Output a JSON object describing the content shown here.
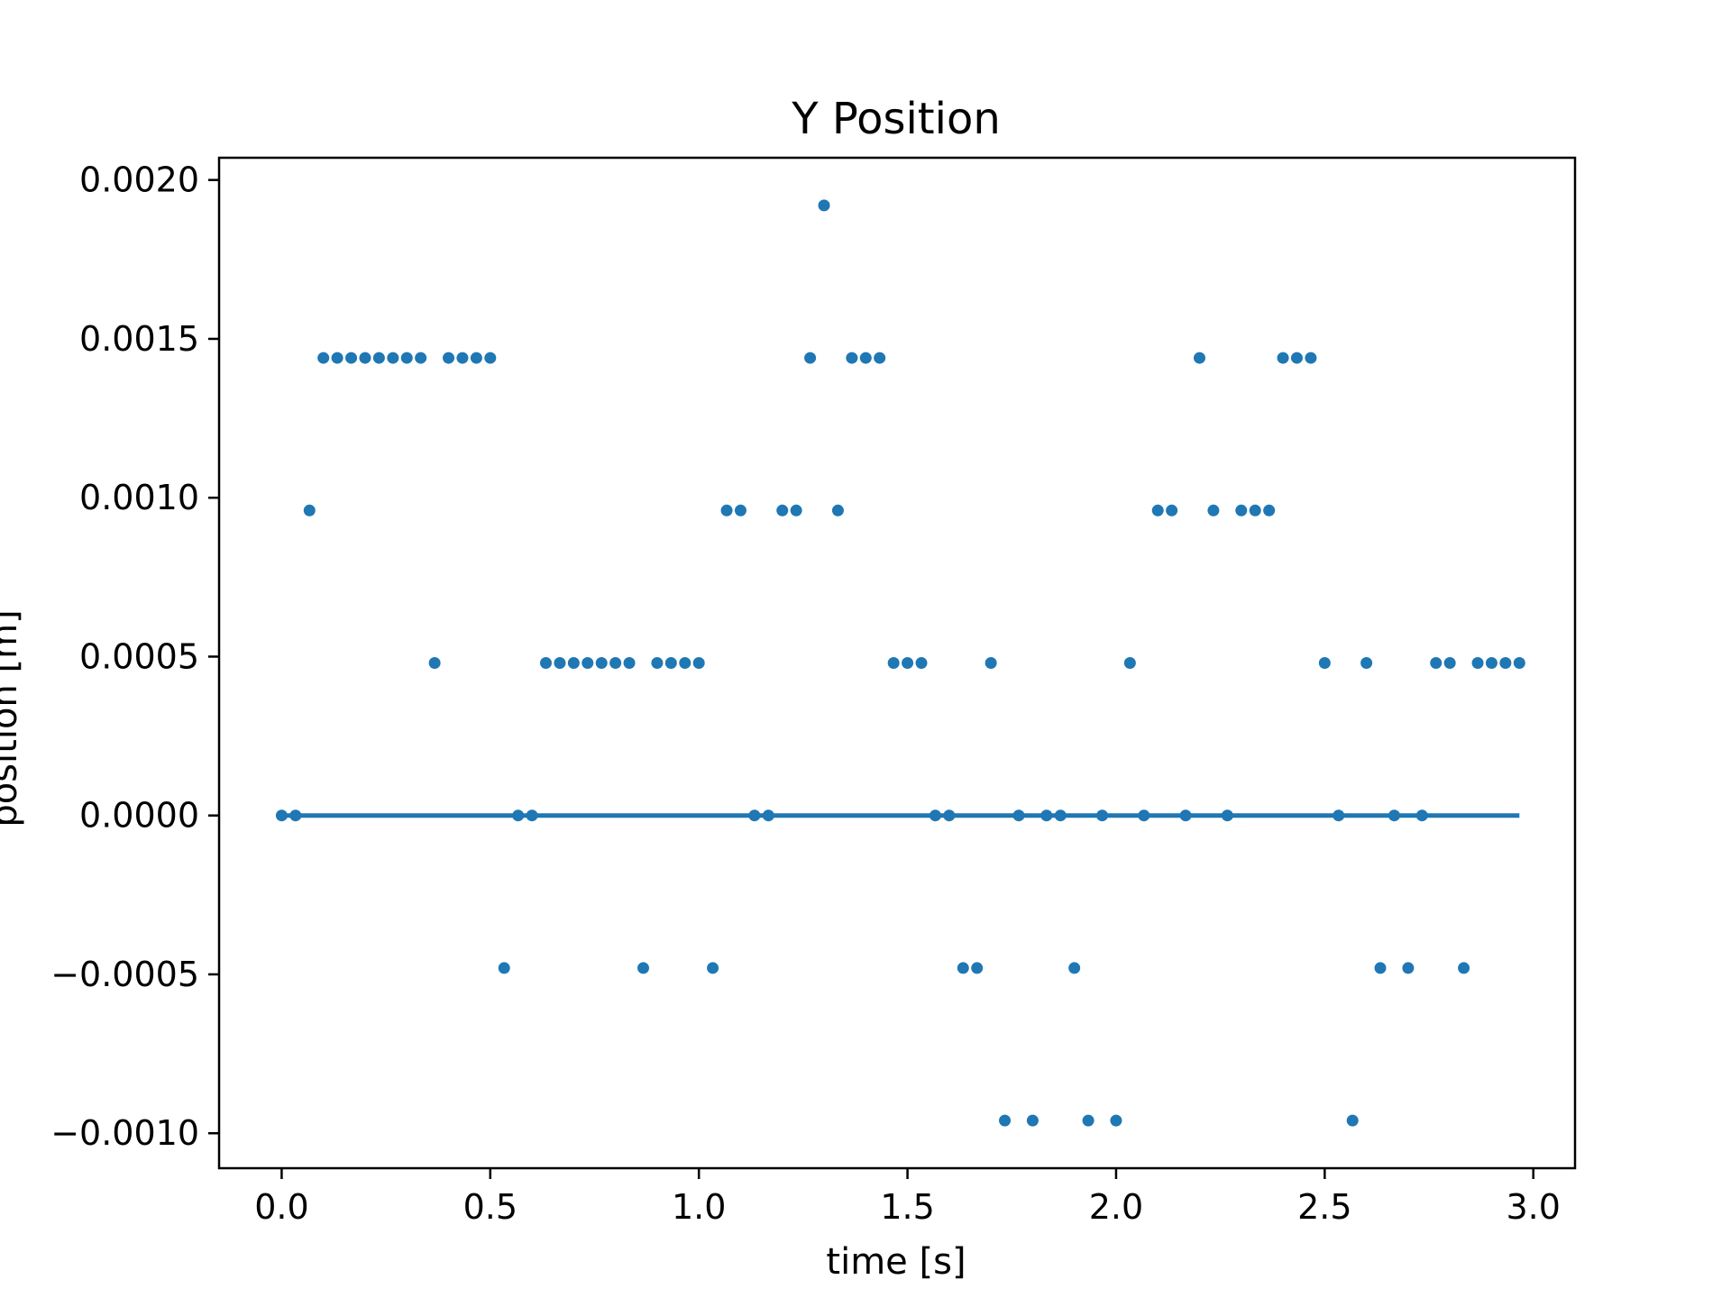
{
  "chart_data": {
    "type": "scatter",
    "title": "Y Position",
    "xlabel": "time [s]",
    "ylabel": "position [m]",
    "xlim": [
      -0.15,
      3.1
    ],
    "ylim": [
      -0.00111,
      0.00207
    ],
    "xticks": [
      0.0,
      0.5,
      1.0,
      1.5,
      2.0,
      2.5,
      3.0
    ],
    "xtick_labels": [
      "0.0",
      "0.5",
      "1.0",
      "1.5",
      "2.0",
      "2.5",
      "3.0"
    ],
    "yticks": [
      -0.001,
      -0.0005,
      0.0,
      0.0005,
      0.001,
      0.0015,
      0.002
    ],
    "ytick_labels": [
      "−0.0010",
      "−0.0005",
      "0.0000",
      "0.0005",
      "0.0010",
      "0.0015",
      "0.0020"
    ],
    "grid": false,
    "color": "#1f77b4",
    "series": [
      {
        "kind": "scatter",
        "x": [
          0.0,
          0.0333,
          0.0667,
          0.1,
          0.1333,
          0.1667,
          0.2,
          0.2333,
          0.2667,
          0.3,
          0.3333,
          0.3667,
          0.4,
          0.4333,
          0.4667,
          0.5,
          0.5333,
          0.5667,
          0.6,
          0.6333,
          0.6667,
          0.7,
          0.7333,
          0.7667,
          0.8,
          0.8333,
          0.8667,
          0.9,
          0.9333,
          0.9667,
          1.0,
          1.0333,
          1.0667,
          1.1,
          1.1333,
          1.1667,
          1.2,
          1.2333,
          1.2667,
          1.3,
          1.3333,
          1.3667,
          1.4,
          1.4333,
          1.4667,
          1.5,
          1.5333,
          1.5667,
          1.6,
          1.6333,
          1.6667,
          1.7,
          1.7333,
          1.7667,
          1.8,
          1.8333,
          1.8667,
          1.9,
          1.9333,
          1.9667,
          2.0,
          2.0333,
          2.0667,
          2.1,
          2.1333,
          2.1667,
          2.2,
          2.2333,
          2.2667,
          2.3,
          2.3333,
          2.3667,
          2.4,
          2.4333,
          2.4667,
          2.5,
          2.5333,
          2.5667,
          2.6,
          2.6333,
          2.6667,
          2.7,
          2.7333,
          2.7667,
          2.8,
          2.8333,
          2.8667,
          2.9,
          2.9333,
          2.9667
        ],
        "y": [
          0.0,
          0.0,
          0.00096,
          0.00144,
          0.00144,
          0.00144,
          0.00144,
          0.00144,
          0.00144,
          0.00144,
          0.00144,
          0.00048,
          0.00144,
          0.00144,
          0.00144,
          0.00144,
          -0.00048,
          0.0,
          0.0,
          0.00048,
          0.00048,
          0.00048,
          0.00048,
          0.00048,
          0.00048,
          0.00048,
          -0.00048,
          0.00048,
          0.00048,
          0.00048,
          0.00048,
          -0.00048,
          0.00096,
          0.00096,
          0.0,
          0.0,
          0.00096,
          0.00096,
          0.00144,
          0.00192,
          0.00096,
          0.00144,
          0.00144,
          0.00144,
          0.00048,
          0.00048,
          0.00048,
          0.0,
          0.0,
          -0.00048,
          -0.00048,
          0.00048,
          -0.00096,
          0.0,
          -0.00096,
          0.0,
          0.0,
          -0.00048,
          -0.00096,
          0.0,
          -0.00096,
          0.00048,
          0.0,
          0.00096,
          0.00096,
          0.0,
          0.00144,
          0.00096,
          0.0,
          0.00096,
          0.00096,
          0.00096,
          0.00144,
          0.00144,
          0.00144,
          0.00048,
          0.0,
          -0.00096,
          0.00048,
          -0.00048,
          0.0,
          -0.00048,
          0.0,
          0.00048,
          0.00048,
          -0.00048,
          0.00048,
          0.00048,
          0.00048,
          0.00048
        ]
      },
      {
        "kind": "line",
        "x": [
          0.0,
          2.9667
        ],
        "y": [
          0.0,
          0.0
        ]
      }
    ]
  }
}
